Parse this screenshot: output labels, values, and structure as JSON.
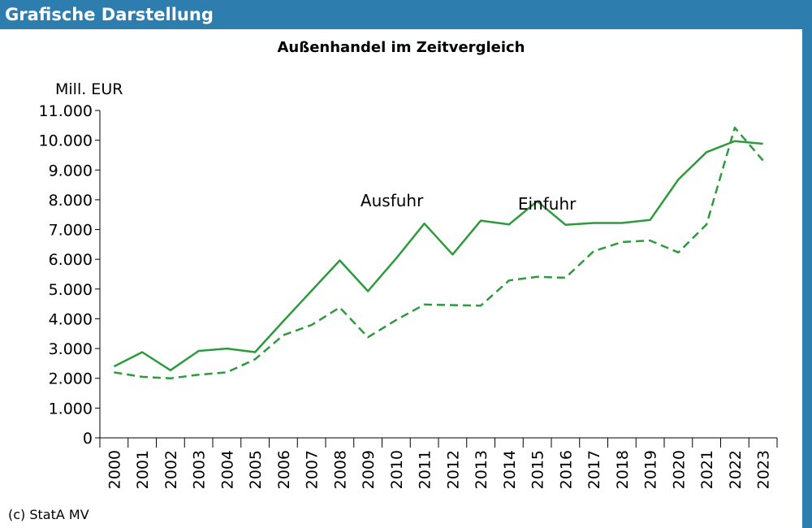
{
  "header": {
    "title": "Grafische Darstellung"
  },
  "footer": {
    "copyright": "(c) StatA MV"
  },
  "colors": {
    "header_bg": "#2e7daf",
    "line": "#2e9a3e"
  },
  "chart_data": {
    "type": "line",
    "title": "Außenhandel im Zeitvergleich",
    "xlabel": "",
    "ylabel": "Mill. EUR",
    "ylim": [
      0,
      11000
    ],
    "y_ticks": [
      0,
      1000,
      2000,
      3000,
      4000,
      5000,
      6000,
      7000,
      8000,
      9000,
      10000,
      11000
    ],
    "y_tick_labels": [
      "0",
      "1.000",
      "2.000",
      "3.000",
      "4.000",
      "5.000",
      "6.000",
      "7.000",
      "8.000",
      "9.000",
      "10.000",
      "11.000"
    ],
    "categories": [
      "2000",
      "2001",
      "2002",
      "2003",
      "2004",
      "2005",
      "2006",
      "2007",
      "2008",
      "2009",
      "2010",
      "2011",
      "2012",
      "2013",
      "2014",
      "2015",
      "2016",
      "2017",
      "2018",
      "2019",
      "2020",
      "2021",
      "2022",
      "2023"
    ],
    "legend": "inline labels",
    "series": [
      {
        "name": "Ausfuhr",
        "style": "solid",
        "values": [
          2400,
          2880,
          2270,
          2920,
          3000,
          2880,
          3920,
          4940,
          5960,
          4930,
          6030,
          7200,
          6160,
          7300,
          7170,
          7950,
          7160,
          7220,
          7220,
          7320,
          8680,
          9600,
          9970,
          9880
        ]
      },
      {
        "name": "Einfuhr",
        "style": "dashed",
        "values": [
          2200,
          2050,
          2000,
          2120,
          2200,
          2640,
          3450,
          3790,
          4380,
          3380,
          3960,
          4480,
          4460,
          4440,
          5290,
          5410,
          5380,
          6270,
          6580,
          6630,
          6230,
          7170,
          10420,
          9320
        ]
      }
    ]
  }
}
